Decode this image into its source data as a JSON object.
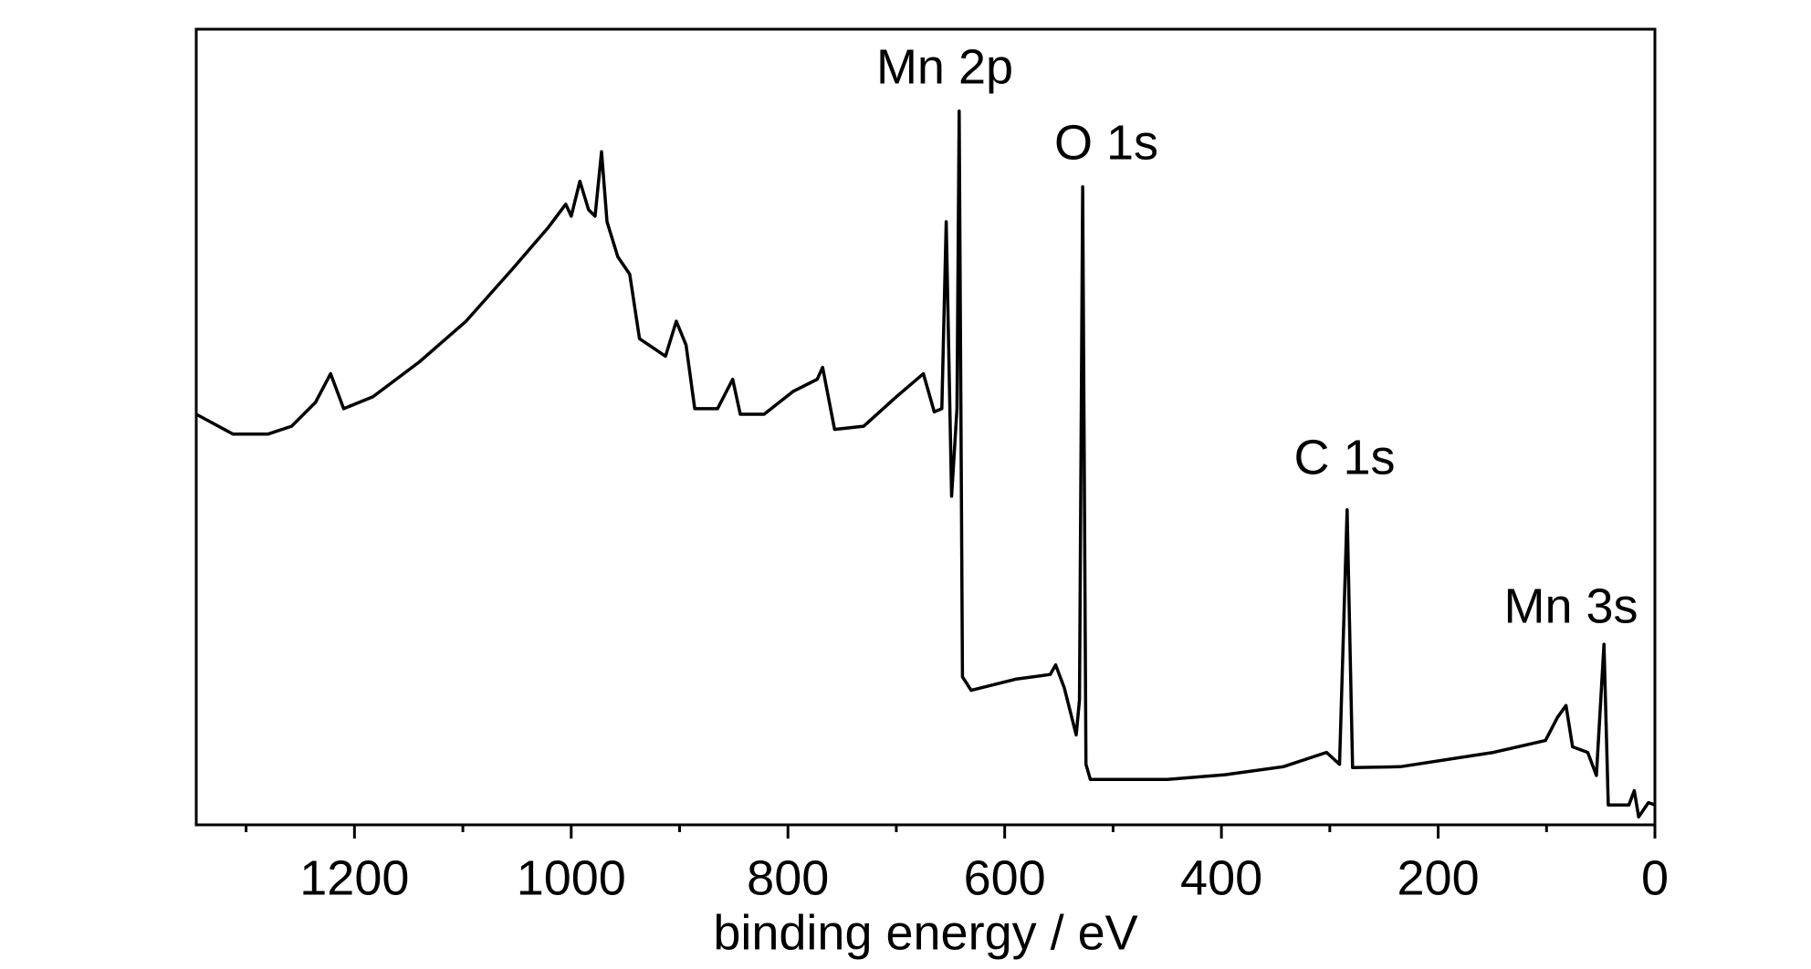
{
  "chart_data": {
    "type": "line",
    "x_label": "binding energy / eV",
    "x": [
      1346,
      1312,
      1280,
      1258,
      1236,
      1222,
      1210,
      1183,
      1140,
      1097,
      1054,
      1021,
      1005,
      1000,
      992,
      984,
      978,
      972,
      967,
      957,
      946,
      937,
      913,
      903,
      894,
      886,
      865,
      851,
      844,
      822,
      795,
      773,
      768,
      757,
      730,
      700,
      675,
      665,
      658,
      654,
      649,
      644,
      642,
      639,
      631,
      590,
      558,
      553,
      545,
      534,
      531,
      528,
      525,
      521,
      450,
      397,
      343,
      303,
      291,
      284,
      279,
      235,
      149,
      101,
      90,
      82,
      76,
      62,
      54,
      47,
      43,
      24,
      19,
      15,
      6,
      0
    ],
    "values": [
      51.6,
      49.1,
      49.1,
      50.1,
      53.1,
      56.7,
      52.3,
      53.8,
      58.2,
      63.3,
      69.9,
      75.1,
      78.0,
      76.5,
      80.9,
      77.3,
      76.5,
      84.6,
      75.8,
      71.4,
      69.2,
      61.1,
      58.9,
      63.3,
      60.3,
      52.3,
      52.3,
      56.0,
      51.6,
      51.6,
      54.5,
      56.0,
      57.5,
      49.7,
      50.1,
      53.8,
      56.7,
      51.9,
      52.3,
      75.8,
      41.3,
      52.3,
      89.7,
      18.6,
      16.9,
      18.3,
      18.9,
      20.1,
      17.2,
      11.3,
      15.7,
      80.2,
      7.6,
      5.7,
      5.7,
      6.3,
      7.3,
      9.1,
      7.6,
      39.6,
      7.2,
      7.3,
      9.1,
      10.6,
      13.5,
      15.0,
      9.8,
      9.1,
      6.2,
      22.7,
      2.5,
      2.5,
      4.3,
      1.0,
      2.8,
      2.5
    ],
    "color": "#000000",
    "xlim": [
      1346,
      0
    ],
    "xticks": [
      1200,
      1000,
      800,
      600,
      400,
      200,
      0
    ],
    "xminorticks": [
      1300,
      1100,
      900,
      700,
      500,
      300,
      100
    ],
    "ylim": [
      0,
      100
    ],
    "annotations": [
      "Mn 2p",
      "O 1s",
      "C 1s",
      "Mn 3s"
    ]
  }
}
